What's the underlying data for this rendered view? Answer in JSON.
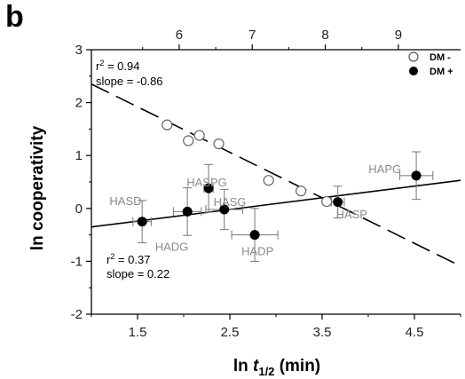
{
  "figure": {
    "panel_letter": "b"
  },
  "chart_data": {
    "type": "scatter",
    "xlabel_prefix": "ln ",
    "xlabel_var": "t",
    "xlabel_sub": "1/2",
    "xlabel_suffix": " (min)",
    "ylabel": "ln cooperativity",
    "xlim": [
      1.0,
      5.0
    ],
    "ylim": [
      -2,
      3
    ],
    "x_ticks": [
      1.5,
      2.5,
      3.5,
      4.5
    ],
    "x_tick_labels": [
      "1.5",
      "2.5",
      "3.5",
      "4.5"
    ],
    "y_ticks": [
      -2,
      -1,
      0,
      1,
      2,
      3
    ],
    "y_tick_labels": [
      "-2",
      "-1",
      "0",
      "1",
      "2",
      "3"
    ],
    "x2_ticks": [
      6,
      7,
      8,
      9
    ],
    "x2_tick_labels": [
      "6",
      "7",
      "8",
      "9"
    ],
    "x2_map": {
      "bottom": [
        1.5,
        4.5
      ],
      "top": [
        5.43,
        9.22
      ]
    },
    "legend": {
      "position": "top-right",
      "entries": [
        {
          "label": "DM -",
          "marker": "open-circle"
        },
        {
          "label": "DM +",
          "marker": "filled-circle"
        }
      ]
    },
    "series": [
      {
        "name": "DM -",
        "marker": "open",
        "points": [
          {
            "x": 1.82,
            "y": 1.58
          },
          {
            "x": 2.05,
            "y": 1.28
          },
          {
            "x": 2.17,
            "y": 1.38
          },
          {
            "x": 2.38,
            "y": 1.22
          },
          {
            "x": 2.92,
            "y": 0.53
          },
          {
            "x": 3.27,
            "y": 0.33
          },
          {
            "x": 3.55,
            "y": 0.13
          }
        ],
        "fit": {
          "slope": -0.86,
          "intercept": 3.21,
          "dash": true
        },
        "stats": {
          "r2_prefix": "r",
          "r2_sup": "2",
          "r2_value": " = 0.94",
          "slope_text": "slope = -0.86"
        }
      },
      {
        "name": "DM +",
        "marker": "filled",
        "points": [
          {
            "x": 1.55,
            "y": -0.25,
            "xerr": 0.1,
            "yerr": 0.4,
            "label": "HASD",
            "lx": 1.37,
            "ly": 0.15
          },
          {
            "x": 2.04,
            "y": -0.06,
            "xerr": 0.15,
            "yerr": 0.45,
            "label": "HADG",
            "lx": 1.87,
            "ly": -0.72
          },
          {
            "x": 2.27,
            "y": 0.38,
            "xerr": 0.05,
            "yerr": 0.45,
            "label": "HASPG",
            "lx": 2.25,
            "ly": 0.5
          },
          {
            "x": 2.44,
            "y": -0.02,
            "xerr": 0.2,
            "yerr": 0.38,
            "label": "HASG",
            "lx": 2.5,
            "ly": 0.13
          },
          {
            "x": 2.77,
            "y": -0.5,
            "xerr": 0.25,
            "yerr": 0.5,
            "label": "HADP",
            "lx": 2.8,
            "ly": -0.8
          },
          {
            "x": 3.67,
            "y": 0.12,
            "xerr": 0.07,
            "yerr": 0.3,
            "label": "HASP",
            "lx": 3.82,
            "ly": -0.1
          },
          {
            "x": 4.52,
            "y": 0.62,
            "xerr": 0.18,
            "yerr": 0.45,
            "label": "HAPG",
            "lx": 4.18,
            "ly": 0.75
          }
        ],
        "fit": {
          "slope": 0.22,
          "intercept": -0.57,
          "dash": false
        },
        "stats": {
          "r2_prefix": "r",
          "r2_sup": "2",
          "r2_value": " = 0.37",
          "slope_text": "slope = 0.22"
        }
      }
    ]
  }
}
